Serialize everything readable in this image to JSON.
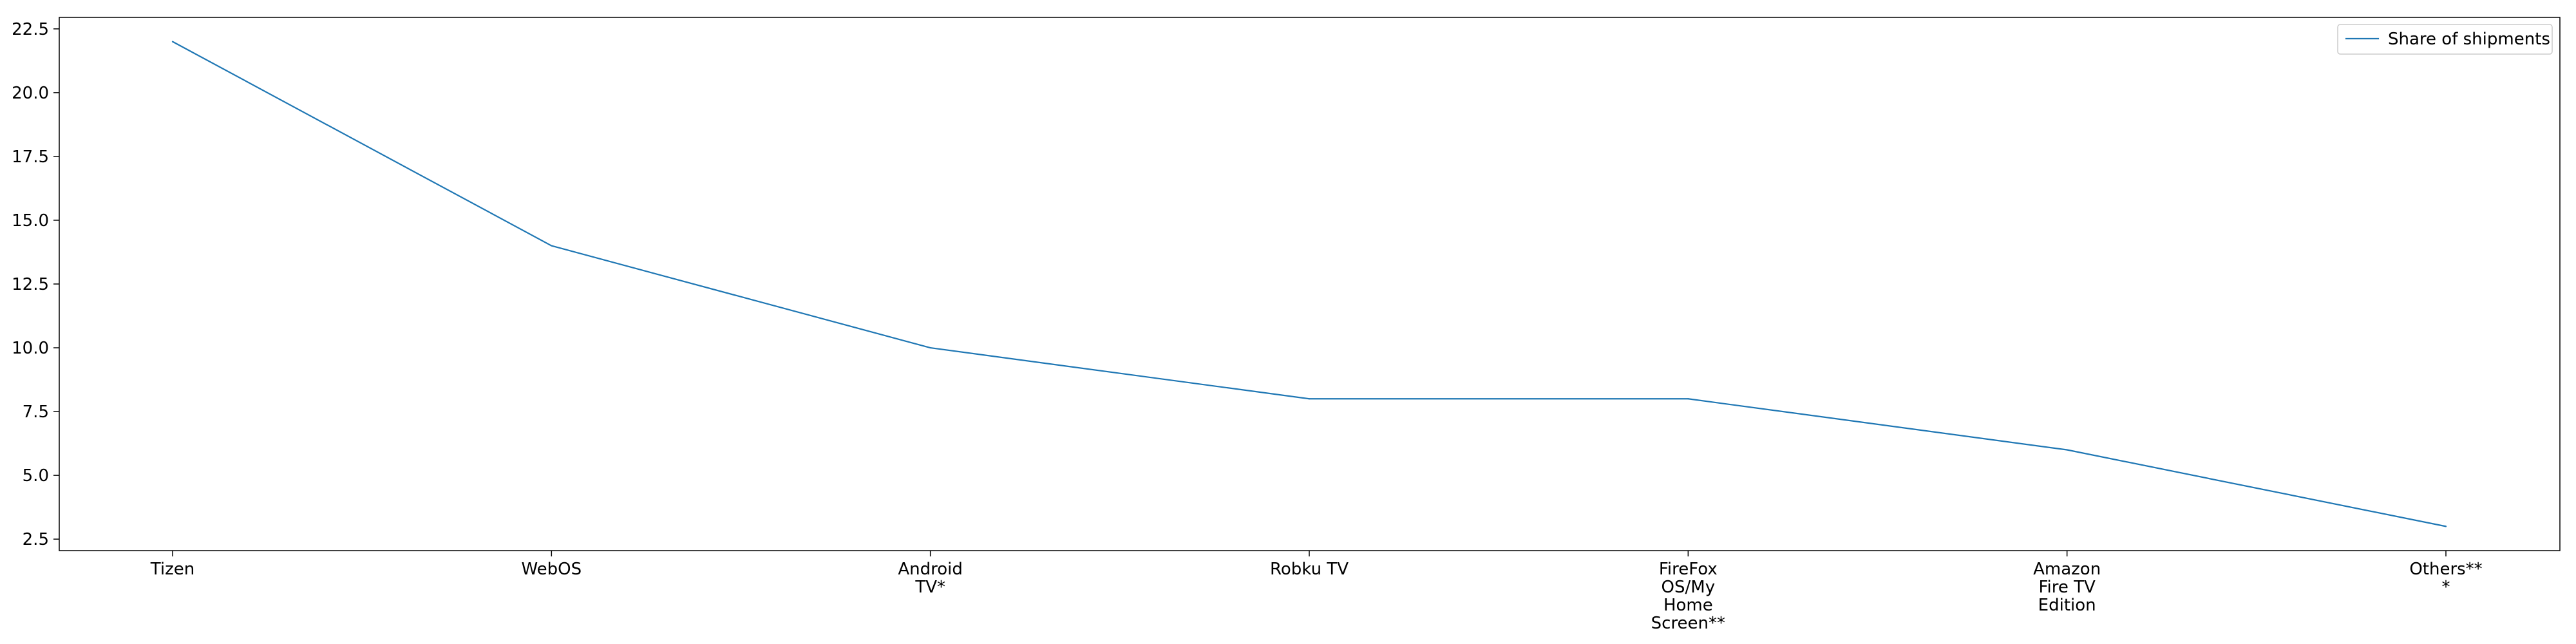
{
  "chart_data": {
    "type": "line",
    "categories": [
      [
        "Tizen"
      ],
      [
        "WebOS"
      ],
      [
        "Android",
        "TV*"
      ],
      [
        "Robku TV"
      ],
      [
        "FireFox",
        "OS/My",
        "Home",
        "Screen**"
      ],
      [
        "Amazon",
        "Fire TV",
        "Edition"
      ],
      [
        "Others**",
        "*"
      ]
    ],
    "series": [
      {
        "name": "Share of shipments",
        "values": [
          22,
          14,
          10,
          8,
          8,
          6,
          3
        ],
        "color": "#1f77b4"
      }
    ],
    "ylim": [
      2.05,
      22.95
    ],
    "yticks": [
      2.5,
      5.0,
      7.5,
      10.0,
      12.5,
      15.0,
      17.5,
      20.0,
      22.5
    ],
    "ytick_labels": [
      "2.5",
      "5.0",
      "7.5",
      "10.0",
      "12.5",
      "15.0",
      "17.5",
      "20.0",
      "22.5"
    ],
    "grid": false,
    "legend_position": "top-right",
    "title": "",
    "xlabel": "",
    "ylabel": ""
  }
}
